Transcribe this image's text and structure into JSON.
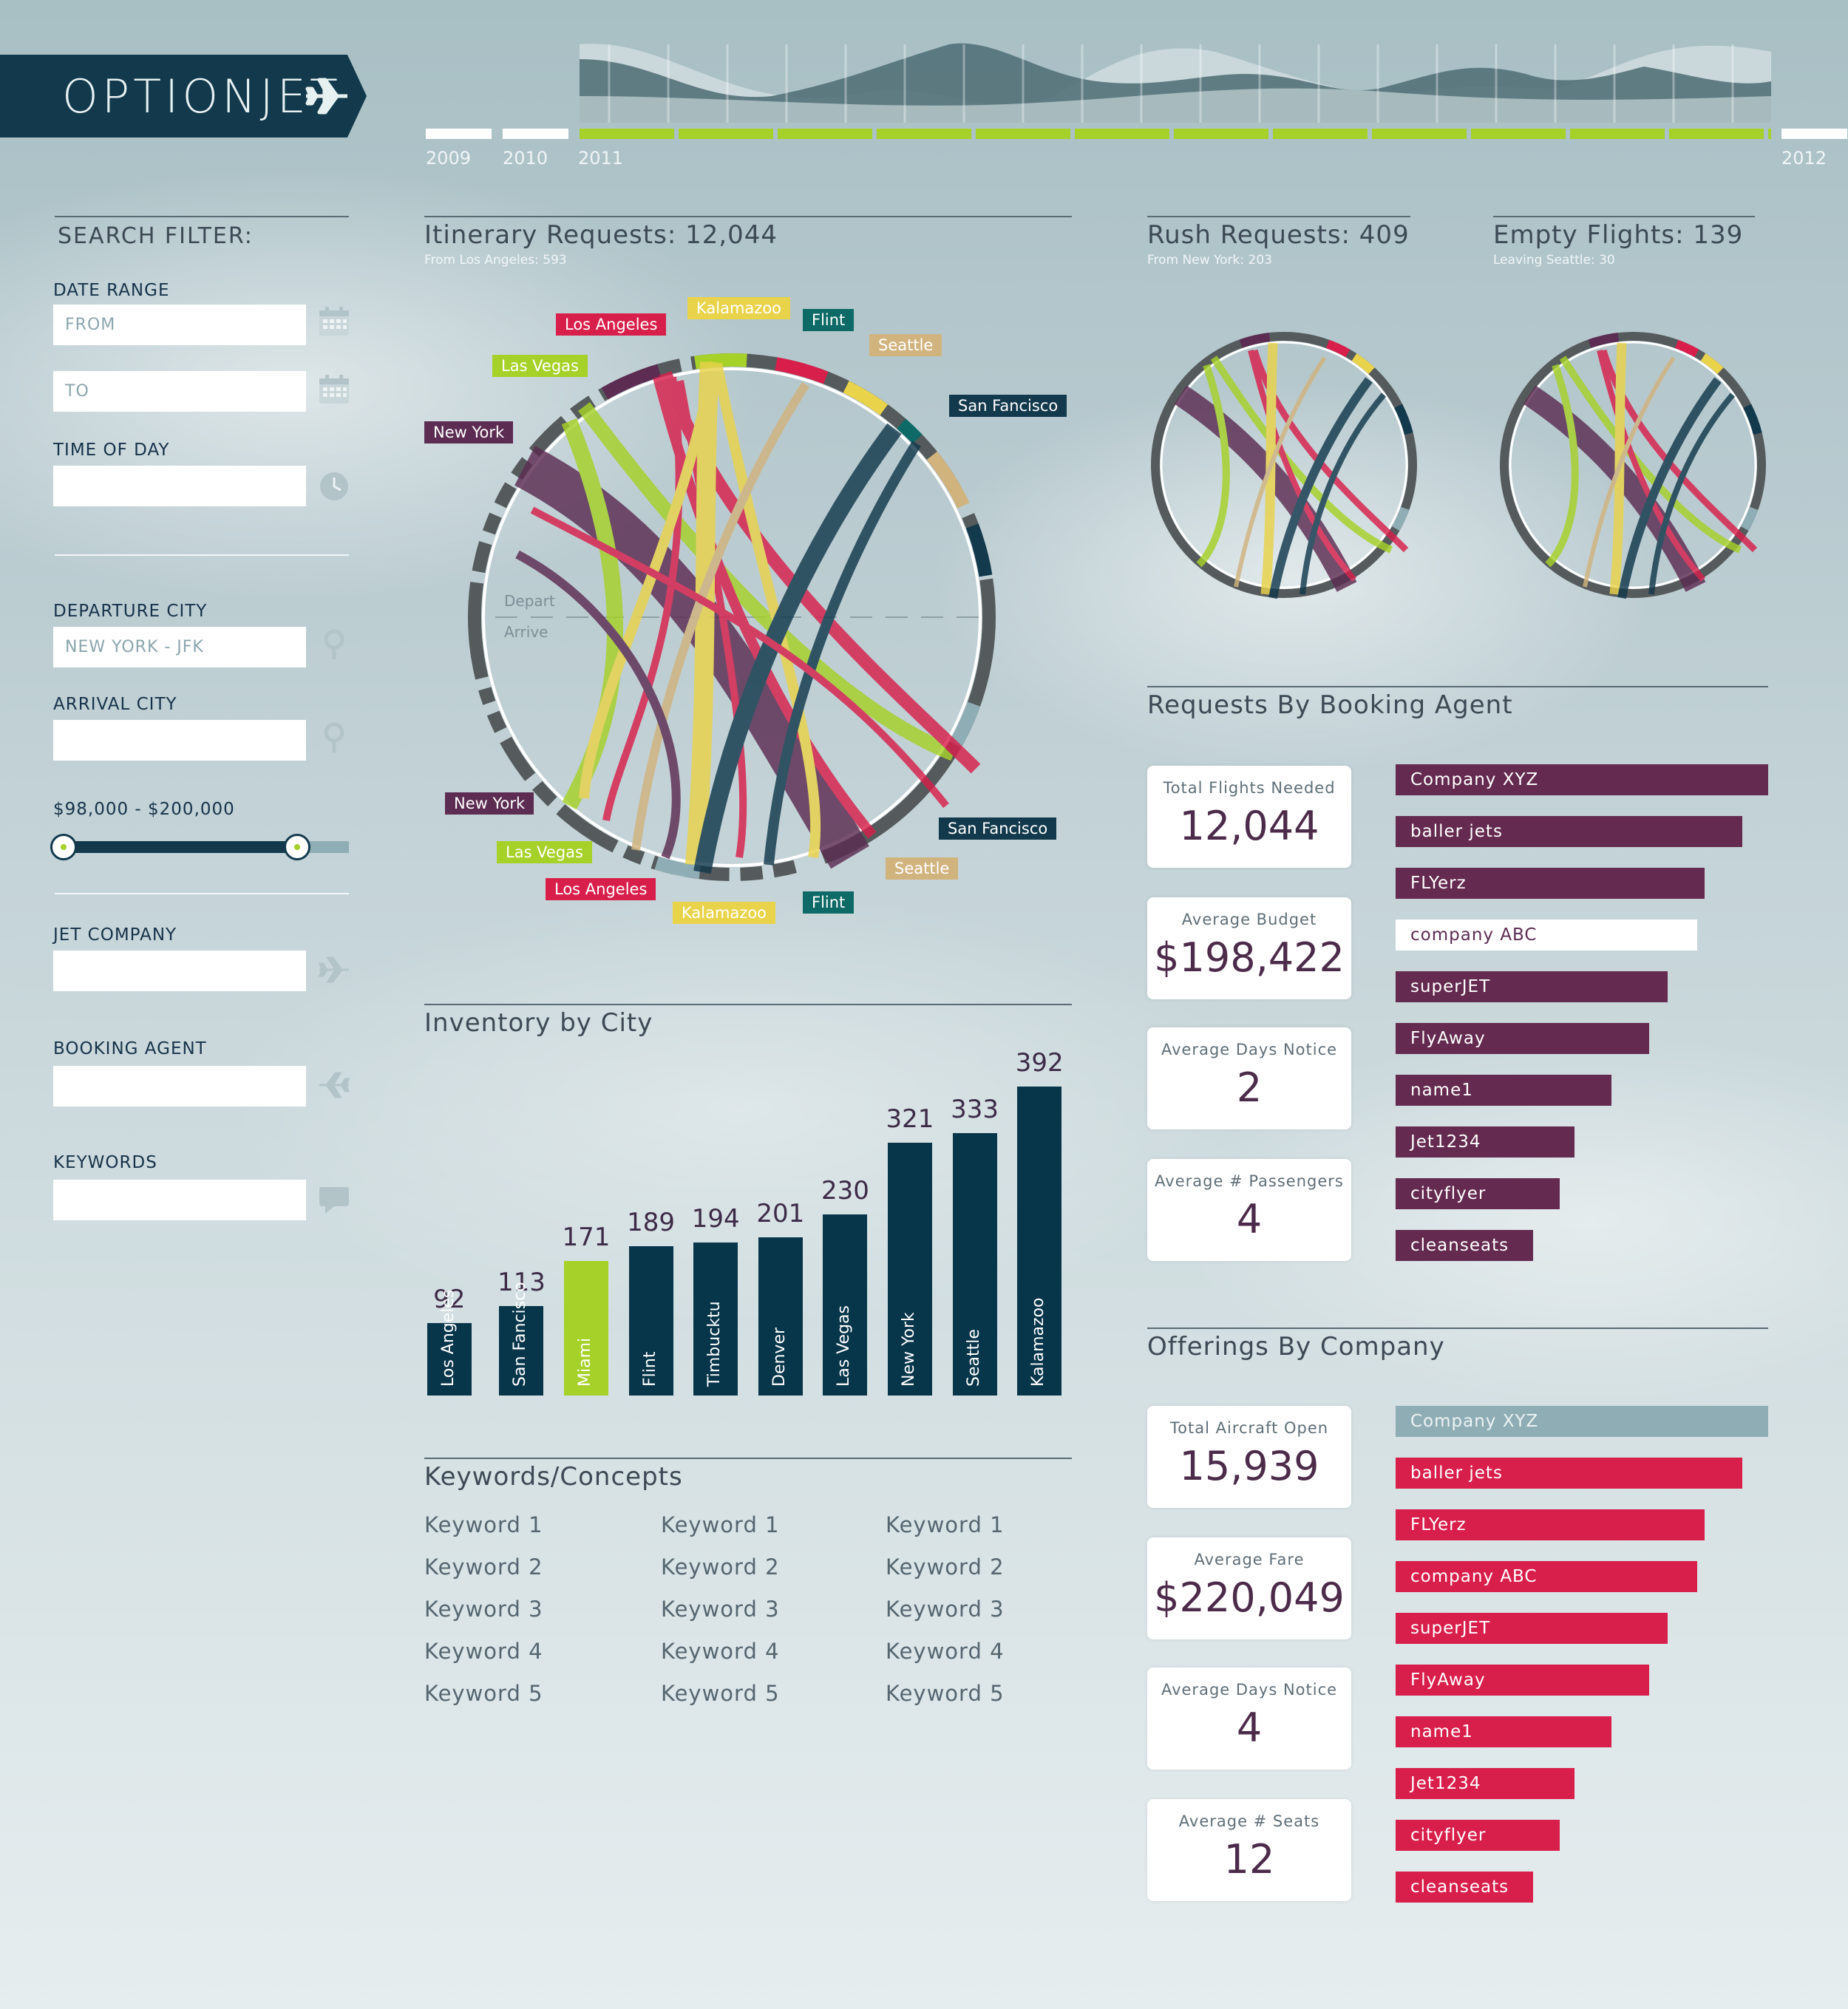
{
  "header": {
    "logo_text": "OPTIONJET",
    "timeline": {
      "labels": [
        "2009",
        "2010",
        "2011",
        "2012"
      ]
    }
  },
  "filter": {
    "title": "SEARCH FILTER:",
    "date_range_label": "DATE RANGE",
    "from_placeholder": "FROM",
    "to_placeholder": "TO",
    "time_of_day_label": "TIME OF DAY",
    "departure_city_label": "DEPARTURE CITY",
    "departure_city_value": "NEW YORK - JFK",
    "arrival_city_label": "ARRIVAL CITY",
    "price_range_label": "$98,000 - $200,000",
    "jet_company_label": "JET COMPANY",
    "booking_agent_label": "BOOKING AGENT",
    "keywords_label": "KEYWORDS"
  },
  "itinerary": {
    "title": "Itinerary Requests: 12,044",
    "subtitle": "From Los Angeles: 593",
    "depart_label": "Depart",
    "arrive_label": "Arrive",
    "top_labels": [
      "Los Angeles",
      "Kalamazoo",
      "Flint",
      "Seattle",
      "Las Vegas",
      "San Fancisco",
      "New York"
    ],
    "bottom_labels": [
      "New York",
      "Las Vegas",
      "Los Angeles",
      "Kalamazoo",
      "Flint",
      "Seattle",
      "San Fancisco"
    ]
  },
  "rush": {
    "title": "Rush Requests: 409",
    "subtitle": "From New York: 203"
  },
  "empty": {
    "title": "Empty Flights: 139",
    "subtitle": "Leaving Seattle: 30"
  },
  "inventory": {
    "title": "Inventory by City"
  },
  "chart_data": {
    "type": "bar",
    "title": "Inventory by City",
    "categories": [
      "Los Angeles",
      "San Fancisco",
      "Miami",
      "Flint",
      "Timbucktu",
      "Denver",
      "Las Vegas",
      "New York",
      "Seattle",
      "Kalamazoo"
    ],
    "values": [
      92,
      113,
      171,
      189,
      194,
      201,
      230,
      321,
      333,
      392
    ],
    "highlight_index": 2,
    "colors": {
      "bar": "#07354a",
      "highlight": "#a6d128"
    },
    "ylim": [
      0,
      420
    ]
  },
  "keywords": {
    "title": "Keywords/Concepts",
    "col1": [
      "Keyword 1",
      "Keyword 2",
      "Keyword 3",
      "Keyword 4",
      "Keyword 5"
    ],
    "col2": [
      "Keyword 1",
      "Keyword 2",
      "Keyword 3",
      "Keyword 4",
      "Keyword 5"
    ],
    "col3": [
      "Keyword 1",
      "Keyword 2",
      "Keyword 3",
      "Keyword 4",
      "Keyword 5"
    ]
  },
  "booking": {
    "title": "Requests By Booking Agent",
    "cards": [
      {
        "label": "Total Flights Needed",
        "value": "12,044"
      },
      {
        "label": "Average Budget",
        "value": "$198,422"
      },
      {
        "label": "Average Days Notice",
        "value": "2"
      },
      {
        "label": "Average # Passengers",
        "value": "4"
      }
    ],
    "agents": [
      {
        "name": "Company XYZ",
        "value": 100
      },
      {
        "name": "baller jets",
        "value": 93
      },
      {
        "name": "FLYerz",
        "value": 83
      },
      {
        "name": "company ABC",
        "value": 81
      },
      {
        "name": "superJET",
        "value": 73
      },
      {
        "name": "FlyAway",
        "value": 68
      },
      {
        "name": "name1",
        "value": 58
      },
      {
        "name": "Jet1234",
        "value": 48
      },
      {
        "name": "cityflyer",
        "value": 44
      },
      {
        "name": "cleanseats",
        "value": 37
      }
    ],
    "selected_index": 3,
    "color": "#642a4f"
  },
  "offerings": {
    "title": "Offerings By Company",
    "cards": [
      {
        "label": "Total Aircraft Open",
        "value": "15,939"
      },
      {
        "label": "Average Fare",
        "value": "$220,049"
      },
      {
        "label": "Average Days Notice",
        "value": "4"
      },
      {
        "label": "Average # Seats",
        "value": "12"
      }
    ],
    "companies": [
      {
        "name": "Company XYZ",
        "value": 100
      },
      {
        "name": "baller jets",
        "value": 93
      },
      {
        "name": "FLYerz",
        "value": 83
      },
      {
        "name": "company ABC",
        "value": 81
      },
      {
        "name": "superJET",
        "value": 73
      },
      {
        "name": "FlyAway",
        "value": 68
      },
      {
        "name": "name1",
        "value": 58
      },
      {
        "name": "Jet1234",
        "value": 48
      },
      {
        "name": "cityflyer",
        "value": 44
      },
      {
        "name": "cleanseats",
        "value": 37
      }
    ],
    "selected_index": 0,
    "color": "#d81f4b",
    "selected_color": "#8fadb4"
  }
}
